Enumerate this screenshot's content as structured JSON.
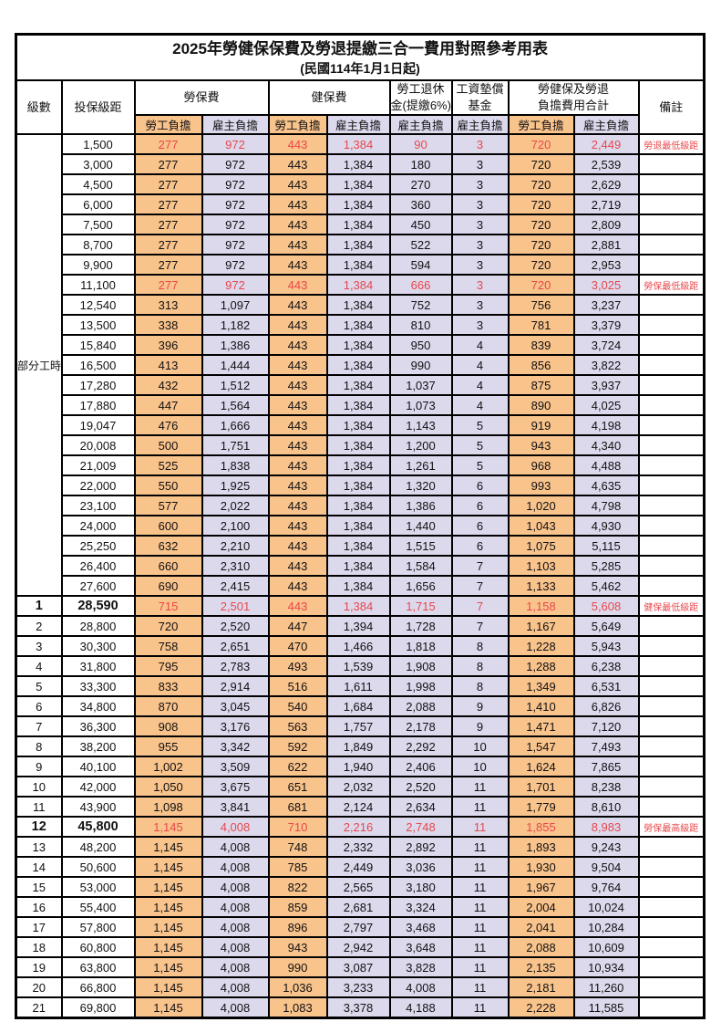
{
  "title": "2025年勞健保保費及勞退提繳三合一費用對照參考用表",
  "subtitle": "(民國114年1月1日起)",
  "colors": {
    "employee_bg": "#F9C38C",
    "employer_bg": "#DCD9ED",
    "highlight_red": "#E8474B",
    "border": "#000000"
  },
  "table": {
    "header": {
      "level": "級數",
      "salary": "投保級距",
      "labor": "勞保費",
      "health": "健保費",
      "pension_line1": "勞工退休",
      "pension_line2": "金(提繳6%)",
      "wage_fund_line1": "工資墊償",
      "wage_fund_line2": "基金",
      "total_line1": "勞健保及勞退",
      "total_line2": "負擔費用合計",
      "note": "備註",
      "employee": "勞工負擔",
      "employer": "雇主負擔"
    },
    "group": {
      "label": "部分工時",
      "rows": 23
    },
    "rows": [
      {
        "lv": "",
        "sal": "1,500",
        "le": "277",
        "lr": "972",
        "he": "443",
        "hr": "1,384",
        "pe": "90",
        "wf": "3",
        "te": "720",
        "ter": "2,449",
        "note": "勞退最低級距",
        "red": true
      },
      {
        "lv": "",
        "sal": "3,000",
        "le": "277",
        "lr": "972",
        "he": "443",
        "hr": "1,384",
        "pe": "180",
        "wf": "3",
        "te": "720",
        "ter": "2,539",
        "note": ""
      },
      {
        "lv": "",
        "sal": "4,500",
        "le": "277",
        "lr": "972",
        "he": "443",
        "hr": "1,384",
        "pe": "270",
        "wf": "3",
        "te": "720",
        "ter": "2,629",
        "note": ""
      },
      {
        "lv": "",
        "sal": "6,000",
        "le": "277",
        "lr": "972",
        "he": "443",
        "hr": "1,384",
        "pe": "360",
        "wf": "3",
        "te": "720",
        "ter": "2,719",
        "note": ""
      },
      {
        "lv": "",
        "sal": "7,500",
        "le": "277",
        "lr": "972",
        "he": "443",
        "hr": "1,384",
        "pe": "450",
        "wf": "3",
        "te": "720",
        "ter": "2,809",
        "note": ""
      },
      {
        "lv": "",
        "sal": "8,700",
        "le": "277",
        "lr": "972",
        "he": "443",
        "hr": "1,384",
        "pe": "522",
        "wf": "3",
        "te": "720",
        "ter": "2,881",
        "note": ""
      },
      {
        "lv": "",
        "sal": "9,900",
        "le": "277",
        "lr": "972",
        "he": "443",
        "hr": "1,384",
        "pe": "594",
        "wf": "3",
        "te": "720",
        "ter": "2,953",
        "note": ""
      },
      {
        "lv": "",
        "sal": "11,100",
        "le": "277",
        "lr": "972",
        "he": "443",
        "hr": "1,384",
        "pe": "666",
        "wf": "3",
        "te": "720",
        "ter": "3,025",
        "note": "勞保最低級距",
        "red": true
      },
      {
        "lv": "",
        "sal": "12,540",
        "le": "313",
        "lr": "1,097",
        "he": "443",
        "hr": "1,384",
        "pe": "752",
        "wf": "3",
        "te": "756",
        "ter": "3,237",
        "note": ""
      },
      {
        "lv": "",
        "sal": "13,500",
        "le": "338",
        "lr": "1,182",
        "he": "443",
        "hr": "1,384",
        "pe": "810",
        "wf": "3",
        "te": "781",
        "ter": "3,379",
        "note": ""
      },
      {
        "lv": "",
        "sal": "15,840",
        "le": "396",
        "lr": "1,386",
        "he": "443",
        "hr": "1,384",
        "pe": "950",
        "wf": "4",
        "te": "839",
        "ter": "3,724",
        "note": ""
      },
      {
        "lv": "",
        "sal": "16,500",
        "le": "413",
        "lr": "1,444",
        "he": "443",
        "hr": "1,384",
        "pe": "990",
        "wf": "4",
        "te": "856",
        "ter": "3,822",
        "note": ""
      },
      {
        "lv": "",
        "sal": "17,280",
        "le": "432",
        "lr": "1,512",
        "he": "443",
        "hr": "1,384",
        "pe": "1,037",
        "wf": "4",
        "te": "875",
        "ter": "3,937",
        "note": ""
      },
      {
        "lv": "",
        "sal": "17,880",
        "le": "447",
        "lr": "1,564",
        "he": "443",
        "hr": "1,384",
        "pe": "1,073",
        "wf": "4",
        "te": "890",
        "ter": "4,025",
        "note": ""
      },
      {
        "lv": "",
        "sal": "19,047",
        "le": "476",
        "lr": "1,666",
        "he": "443",
        "hr": "1,384",
        "pe": "1,143",
        "wf": "5",
        "te": "919",
        "ter": "4,198",
        "note": ""
      },
      {
        "lv": "",
        "sal": "20,008",
        "le": "500",
        "lr": "1,751",
        "he": "443",
        "hr": "1,384",
        "pe": "1,200",
        "wf": "5",
        "te": "943",
        "ter": "4,340",
        "note": ""
      },
      {
        "lv": "",
        "sal": "21,009",
        "le": "525",
        "lr": "1,838",
        "he": "443",
        "hr": "1,384",
        "pe": "1,261",
        "wf": "5",
        "te": "968",
        "ter": "4,488",
        "note": ""
      },
      {
        "lv": "",
        "sal": "22,000",
        "le": "550",
        "lr": "1,925",
        "he": "443",
        "hr": "1,384",
        "pe": "1,320",
        "wf": "6",
        "te": "993",
        "ter": "4,635",
        "note": ""
      },
      {
        "lv": "",
        "sal": "23,100",
        "le": "577",
        "lr": "2,022",
        "he": "443",
        "hr": "1,384",
        "pe": "1,386",
        "wf": "6",
        "te": "1,020",
        "ter": "4,798",
        "note": ""
      },
      {
        "lv": "",
        "sal": "24,000",
        "le": "600",
        "lr": "2,100",
        "he": "443",
        "hr": "1,384",
        "pe": "1,440",
        "wf": "6",
        "te": "1,043",
        "ter": "4,930",
        "note": ""
      },
      {
        "lv": "",
        "sal": "25,250",
        "le": "632",
        "lr": "2,210",
        "he": "443",
        "hr": "1,384",
        "pe": "1,515",
        "wf": "6",
        "te": "1,075",
        "ter": "5,115",
        "note": ""
      },
      {
        "lv": "",
        "sal": "26,400",
        "le": "660",
        "lr": "2,310",
        "he": "443",
        "hr": "1,384",
        "pe": "1,584",
        "wf": "7",
        "te": "1,103",
        "ter": "5,285",
        "note": ""
      },
      {
        "lv": "",
        "sal": "27,600",
        "le": "690",
        "lr": "2,415",
        "he": "443",
        "hr": "1,384",
        "pe": "1,656",
        "wf": "7",
        "te": "1,133",
        "ter": "5,462",
        "note": ""
      },
      {
        "lv": "1",
        "sal": "28,590",
        "le": "715",
        "lr": "2,501",
        "he": "443",
        "hr": "1,384",
        "pe": "1,715",
        "wf": "7",
        "te": "1,158",
        "ter": "5,608",
        "note": "健保最低級距",
        "red": true,
        "bold": true
      },
      {
        "lv": "2",
        "sal": "28,800",
        "le": "720",
        "lr": "2,520",
        "he": "447",
        "hr": "1,394",
        "pe": "1,728",
        "wf": "7",
        "te": "1,167",
        "ter": "5,649",
        "note": ""
      },
      {
        "lv": "3",
        "sal": "30,300",
        "le": "758",
        "lr": "2,651",
        "he": "470",
        "hr": "1,466",
        "pe": "1,818",
        "wf": "8",
        "te": "1,228",
        "ter": "5,943",
        "note": ""
      },
      {
        "lv": "4",
        "sal": "31,800",
        "le": "795",
        "lr": "2,783",
        "he": "493",
        "hr": "1,539",
        "pe": "1,908",
        "wf": "8",
        "te": "1,288",
        "ter": "6,238",
        "note": ""
      },
      {
        "lv": "5",
        "sal": "33,300",
        "le": "833",
        "lr": "2,914",
        "he": "516",
        "hr": "1,611",
        "pe": "1,998",
        "wf": "8",
        "te": "1,349",
        "ter": "6,531",
        "note": ""
      },
      {
        "lv": "6",
        "sal": "34,800",
        "le": "870",
        "lr": "3,045",
        "he": "540",
        "hr": "1,684",
        "pe": "2,088",
        "wf": "9",
        "te": "1,410",
        "ter": "6,826",
        "note": ""
      },
      {
        "lv": "7",
        "sal": "36,300",
        "le": "908",
        "lr": "3,176",
        "he": "563",
        "hr": "1,757",
        "pe": "2,178",
        "wf": "9",
        "te": "1,471",
        "ter": "7,120",
        "note": ""
      },
      {
        "lv": "8",
        "sal": "38,200",
        "le": "955",
        "lr": "3,342",
        "he": "592",
        "hr": "1,849",
        "pe": "2,292",
        "wf": "10",
        "te": "1,547",
        "ter": "7,493",
        "note": ""
      },
      {
        "lv": "9",
        "sal": "40,100",
        "le": "1,002",
        "lr": "3,509",
        "he": "622",
        "hr": "1,940",
        "pe": "2,406",
        "wf": "10",
        "te": "1,624",
        "ter": "7,865",
        "note": ""
      },
      {
        "lv": "10",
        "sal": "42,000",
        "le": "1,050",
        "lr": "3,675",
        "he": "651",
        "hr": "2,032",
        "pe": "2,520",
        "wf": "11",
        "te": "1,701",
        "ter": "8,238",
        "note": ""
      },
      {
        "lv": "11",
        "sal": "43,900",
        "le": "1,098",
        "lr": "3,841",
        "he": "681",
        "hr": "2,124",
        "pe": "2,634",
        "wf": "11",
        "te": "1,779",
        "ter": "8,610",
        "note": ""
      },
      {
        "lv": "12",
        "sal": "45,800",
        "le": "1,145",
        "lr": "4,008",
        "he": "710",
        "hr": "2,216",
        "pe": "2,748",
        "wf": "11",
        "te": "1,855",
        "ter": "8,983",
        "note": "勞保最高級距",
        "red": true,
        "bold": true
      },
      {
        "lv": "13",
        "sal": "48,200",
        "le": "1,145",
        "lr": "4,008",
        "he": "748",
        "hr": "2,332",
        "pe": "2,892",
        "wf": "11",
        "te": "1,893",
        "ter": "9,243",
        "note": ""
      },
      {
        "lv": "14",
        "sal": "50,600",
        "le": "1,145",
        "lr": "4,008",
        "he": "785",
        "hr": "2,449",
        "pe": "3,036",
        "wf": "11",
        "te": "1,930",
        "ter": "9,504",
        "note": ""
      },
      {
        "lv": "15",
        "sal": "53,000",
        "le": "1,145",
        "lr": "4,008",
        "he": "822",
        "hr": "2,565",
        "pe": "3,180",
        "wf": "11",
        "te": "1,967",
        "ter": "9,764",
        "note": ""
      },
      {
        "lv": "16",
        "sal": "55,400",
        "le": "1,145",
        "lr": "4,008",
        "he": "859",
        "hr": "2,681",
        "pe": "3,324",
        "wf": "11",
        "te": "2,004",
        "ter": "10,024",
        "note": ""
      },
      {
        "lv": "17",
        "sal": "57,800",
        "le": "1,145",
        "lr": "4,008",
        "he": "896",
        "hr": "2,797",
        "pe": "3,468",
        "wf": "11",
        "te": "2,041",
        "ter": "10,284",
        "note": ""
      },
      {
        "lv": "18",
        "sal": "60,800",
        "le": "1,145",
        "lr": "4,008",
        "he": "943",
        "hr": "2,942",
        "pe": "3,648",
        "wf": "11",
        "te": "2,088",
        "ter": "10,609",
        "note": ""
      },
      {
        "lv": "19",
        "sal": "63,800",
        "le": "1,145",
        "lr": "4,008",
        "he": "990",
        "hr": "3,087",
        "pe": "3,828",
        "wf": "11",
        "te": "2,135",
        "ter": "10,934",
        "note": ""
      },
      {
        "lv": "20",
        "sal": "66,800",
        "le": "1,145",
        "lr": "4,008",
        "he": "1,036",
        "hr": "3,233",
        "pe": "4,008",
        "wf": "11",
        "te": "2,181",
        "ter": "11,260",
        "note": ""
      },
      {
        "lv": "21",
        "sal": "69,800",
        "le": "1,145",
        "lr": "4,008",
        "he": "1,083",
        "hr": "3,378",
        "pe": "4,188",
        "wf": "11",
        "te": "2,228",
        "ter": "11,585",
        "note": ""
      }
    ]
  }
}
